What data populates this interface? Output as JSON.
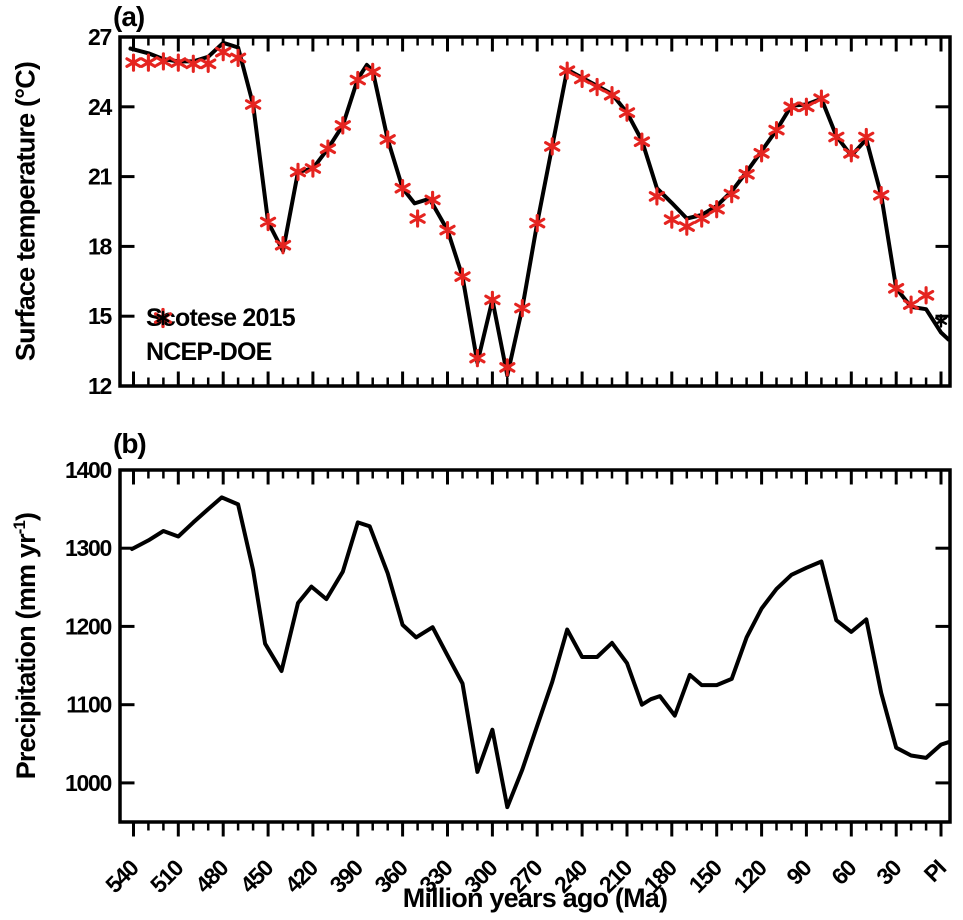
{
  "figure": {
    "xlabel": "Million years ago (Ma)",
    "background": "#ffffff",
    "accent_red": "#e52420",
    "line_black": "#000000"
  },
  "chart_data": [
    {
      "type": "line",
      "panel_label": "(a)",
      "ylabel": "Surface temperature (°C)",
      "ylim": [
        12,
        27
      ],
      "yticks": [
        12,
        15,
        18,
        21,
        24,
        27
      ],
      "xlim": [
        549,
        -6
      ],
      "xtick_minor_step": 10,
      "xtick_major_values": [
        540,
        510,
        480,
        450,
        420,
        390,
        360,
        330,
        300,
        270,
        240,
        210,
        180,
        150,
        120,
        90,
        60,
        30,
        0
      ],
      "xtick_labels": [
        "540",
        "510",
        "480",
        "450",
        "420",
        "390",
        "360",
        "330",
        "300",
        "270",
        "240",
        "210",
        "180",
        "150",
        "120",
        "90",
        "60",
        "30",
        "PI"
      ],
      "grid": false,
      "legend_position": "lower-left",
      "legend": [
        {
          "label": "Scotese 2015",
          "marker": "asterisk",
          "color": "#e52420"
        },
        {
          "label": "NCEP-DOE",
          "marker": "asterisk",
          "color": "#000000"
        }
      ],
      "series": [
        {
          "name": "simulated-temperature-line",
          "kind": "line",
          "color": "#000000",
          "width": 4,
          "x": [
            542,
            530,
            520,
            510,
            500,
            490,
            480,
            470,
            460,
            450,
            440,
            430,
            420,
            410,
            400,
            390,
            384,
            380,
            370,
            360,
            352,
            342,
            330,
            320,
            310,
            300,
            290,
            280,
            270,
            260,
            250,
            240,
            230,
            220,
            210,
            200,
            190,
            180,
            170,
            160,
            150,
            140,
            130,
            120,
            110,
            100,
            90,
            80,
            70,
            60,
            50,
            40,
            30,
            20,
            10,
            0,
            -5
          ],
          "y": [
            26.5,
            26.3,
            26.05,
            25.95,
            25.95,
            26.15,
            26.75,
            26.55,
            24.1,
            19.05,
            17.8,
            21.2,
            21.35,
            22.2,
            23.2,
            25.2,
            25.8,
            25.55,
            22.6,
            20.5,
            19.85,
            20.05,
            18.7,
            16.7,
            13.0,
            15.7,
            12.45,
            15.35,
            19.0,
            22.3,
            25.6,
            25.25,
            24.9,
            24.55,
            23.75,
            22.55,
            20.5,
            19.87,
            19.2,
            19.35,
            19.74,
            20.37,
            21.2,
            22.1,
            23.0,
            24.05,
            24.1,
            24.35,
            22.75,
            21.9,
            22.6,
            20.2,
            16.2,
            15.4,
            15.3,
            14.3,
            14.0
          ]
        },
        {
          "name": "Scotese 2015",
          "kind": "markers",
          "marker": "asterisk",
          "color": "#e52420",
          "radius": 7.6,
          "stroke": 3.1,
          "x": [
            540,
            530,
            520,
            510,
            500,
            490,
            480,
            470,
            460,
            450,
            440,
            430,
            420,
            410,
            400,
            390,
            380,
            370,
            360,
            350,
            340,
            330,
            320,
            310,
            300,
            290,
            280,
            270,
            260,
            250,
            240,
            230,
            220,
            210,
            200,
            190,
            180,
            170,
            160,
            150,
            140,
            130,
            120,
            110,
            100,
            90,
            80,
            70,
            60,
            50,
            40,
            30,
            20,
            10
          ],
          "y": [
            25.9,
            25.9,
            25.95,
            25.9,
            25.85,
            25.85,
            26.35,
            26.1,
            24.1,
            19.05,
            18.05,
            21.2,
            21.35,
            22.2,
            23.2,
            25.15,
            25.5,
            22.6,
            20.5,
            19.2,
            20.0,
            18.7,
            16.7,
            13.2,
            15.7,
            12.8,
            15.35,
            19.0,
            22.3,
            25.55,
            25.2,
            24.85,
            24.5,
            23.75,
            22.5,
            20.15,
            19.15,
            18.85,
            19.2,
            19.6,
            20.25,
            21.1,
            22.0,
            23.0,
            24.0,
            24.0,
            24.35,
            22.7,
            22.0,
            22.7,
            20.2,
            16.2,
            15.5,
            15.9
          ]
        },
        {
          "name": "NCEP-DOE",
          "kind": "markers",
          "marker": "asterisk",
          "color": "#000000",
          "radius": 5.6,
          "stroke": 2.4,
          "x": [
            0
          ],
          "y": [
            14.8
          ]
        }
      ]
    },
    {
      "type": "line",
      "panel_label": "(b)",
      "ylabel_parts": {
        "main": "Precipitation (mm yr",
        "sup": "-1",
        "end": ")"
      },
      "ylim": [
        950,
        1400
      ],
      "yticks": [
        1000,
        1100,
        1200,
        1300,
        1400
      ],
      "xlim": [
        549,
        -6
      ],
      "xtick_minor_step": 10,
      "xtick_major_values": [
        540,
        510,
        480,
        450,
        420,
        390,
        360,
        330,
        300,
        270,
        240,
        210,
        180,
        150,
        120,
        90,
        60,
        30,
        0
      ],
      "xtick_labels": [
        "540",
        "510",
        "480",
        "450",
        "420",
        "390",
        "360",
        "330",
        "300",
        "270",
        "240",
        "210",
        "180",
        "150",
        "120",
        "90",
        "60",
        "30",
        "PI"
      ],
      "grid": false,
      "series": [
        {
          "name": "simulated-precipitation-line",
          "kind": "line",
          "color": "#000000",
          "width": 4,
          "x": [
            541,
            530,
            520,
            510,
            500,
            490,
            481,
            470,
            460,
            452,
            441,
            430,
            421,
            411,
            400,
            390,
            382,
            370,
            360,
            351,
            340,
            330,
            320,
            310,
            300,
            290,
            280,
            270,
            260,
            250,
            240,
            230,
            220,
            210,
            200,
            194,
            188,
            178,
            168,
            160,
            150,
            140,
            130,
            120,
            110,
            100,
            90,
            80,
            70,
            60,
            50,
            40,
            30,
            20,
            10,
            0,
            -5
          ],
          "y": [
            1299,
            1310,
            1322,
            1315,
            1333,
            1350,
            1365,
            1356,
            1272,
            1178,
            1143,
            1230,
            1251,
            1235,
            1270,
            1333,
            1328,
            1268,
            1202,
            1186,
            1199,
            1163,
            1127,
            1014,
            1068,
            969,
            1017,
            1073,
            1129,
            1196,
            1161,
            1161,
            1179,
            1153,
            1100,
            1107,
            1111,
            1086,
            1138,
            1125,
            1125,
            1133,
            1186,
            1223,
            1248,
            1266,
            1275,
            1283,
            1208,
            1193,
            1209,
            1115,
            1045,
            1035,
            1032,
            1049,
            1052
          ]
        }
      ]
    }
  ]
}
